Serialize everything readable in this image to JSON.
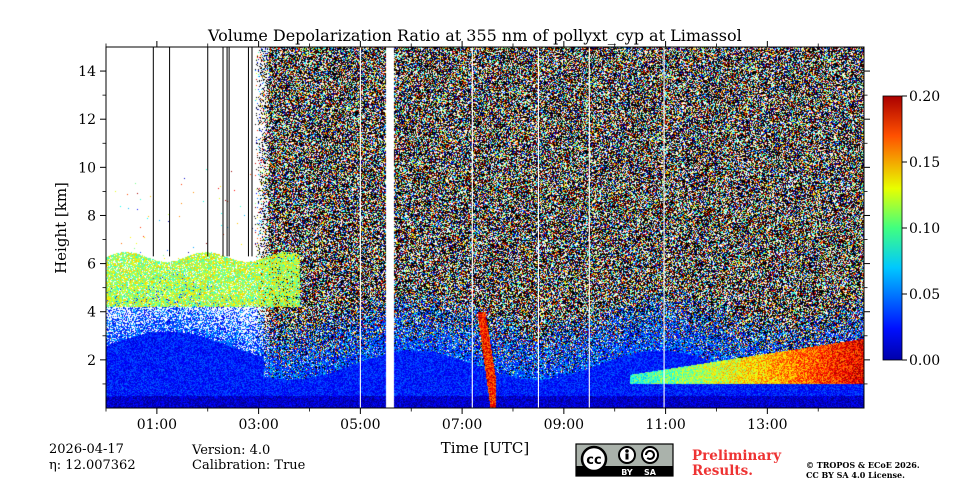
{
  "chart_data": {
    "type": "heatmap",
    "title": "Volume Depolarization Ratio at 355 nm of pollyxt_cyp at Limassol",
    "xlabel": "Time [UTC]",
    "ylabel": "Height [km]",
    "xlim_hours": [
      0.0,
      14.9
    ],
    "ylim_km": [
      0.0,
      15.0
    ],
    "x_ticks": [
      {
        "hour": 1,
        "label": "01:00"
      },
      {
        "hour": 3,
        "label": "03:00"
      },
      {
        "hour": 5,
        "label": "05:00"
      },
      {
        "hour": 7,
        "label": "07:00"
      },
      {
        "hour": 9,
        "label": "09:00"
      },
      {
        "hour": 11,
        "label": "11:00"
      },
      {
        "hour": 13,
        "label": "13:00"
      }
    ],
    "x_minor_step_hours": 1,
    "y_ticks": [
      2,
      4,
      6,
      8,
      10,
      12,
      14
    ],
    "y_tick_labels": [
      "2",
      "4",
      "6",
      "8",
      "10",
      "12",
      "14"
    ],
    "colorbar": {
      "min": 0.0,
      "max": 0.2,
      "ticks": [
        0.0,
        0.05,
        0.1,
        0.15,
        0.2
      ],
      "tick_labels": [
        "0.00",
        "0.05",
        "0.10",
        "0.15",
        "0.20"
      ],
      "colormap": "jet"
    },
    "data_gap_hours": [
      5.5,
      5.65
    ],
    "profile_lines_hours": [
      0.93,
      1.25,
      2.0,
      2.3,
      2.38,
      2.42,
      2.8,
      2.87,
      5.0,
      7.2,
      8.5,
      9.5,
      10.97
    ],
    "layers": [
      {
        "name": "boundary-layer aerosol",
        "from_hour": 0.0,
        "to_hour": 14.9,
        "top_km": 1.8,
        "depol": 0.03
      },
      {
        "name": "elevated dust layer",
        "from_hour": 0.0,
        "to_hour": 3.8,
        "base_km": 4.2,
        "top_km": 6.3,
        "depol": 0.11
      },
      {
        "name": "plume",
        "from_hour": 7.3,
        "to_hour": 7.65,
        "base_km": 0.0,
        "top_km": 4.0,
        "depol": 0.17
      },
      {
        "name": "high-depolarization low layer",
        "from_hour": 10.3,
        "to_hour": 14.9,
        "base_km": 1.0,
        "top_km": 2.9,
        "depol": 0.18
      }
    ]
  },
  "footer": {
    "date": "2026-04-17",
    "eta": "η: 12.007362",
    "version": "Version: 4.0",
    "calibration": "Calibration: True",
    "cc_badge": "cc",
    "cc_by": "BY",
    "cc_sa": "SA",
    "preliminary_line1": "Preliminary",
    "preliminary_line2": "Results.",
    "license_line1": "© TROPOS & ECoE 2026.",
    "license_line2": "CC BY SA 4.0 License."
  },
  "colors": {
    "jet_low": "#0000aa",
    "jet_high": "#aa0000",
    "prelim_text": "#ee3333"
  }
}
